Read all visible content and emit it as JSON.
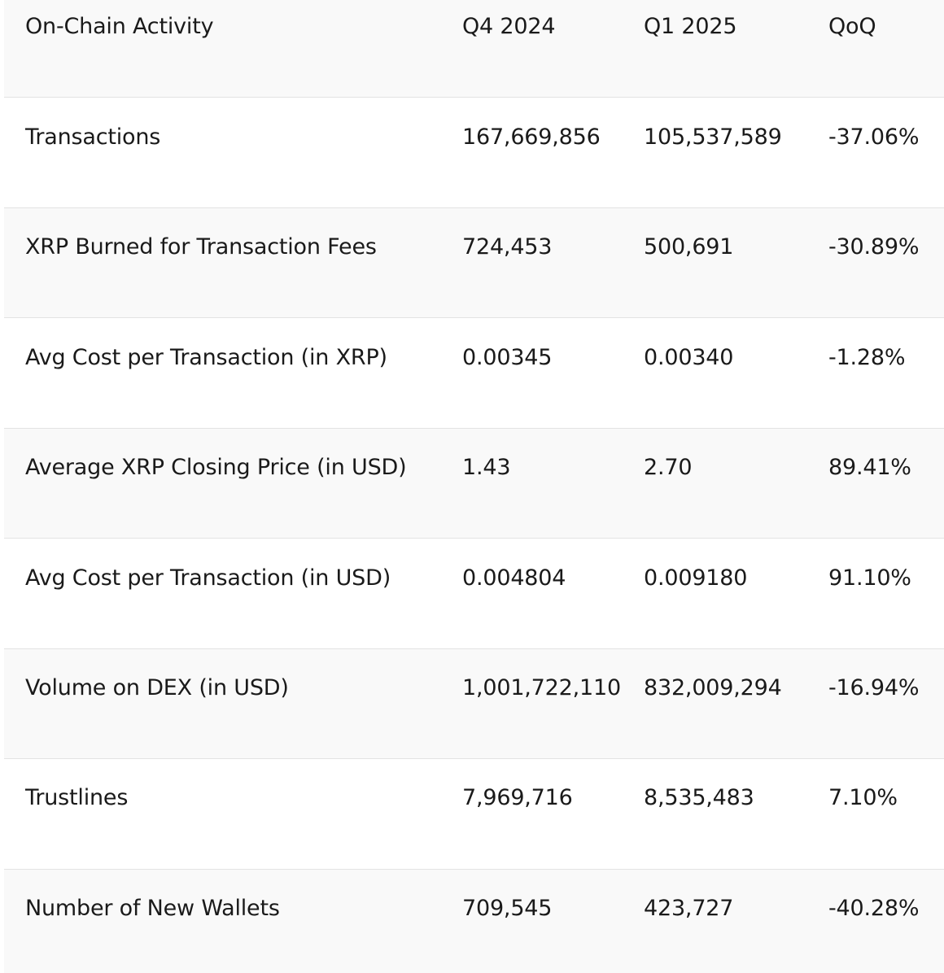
{
  "table": {
    "headers": [
      "On-Chain Activity",
      "Q4 2024",
      "Q1 2025",
      "QoQ"
    ],
    "rows": [
      [
        "Transactions",
        "167,669,856",
        "105,537,589",
        "-37.06%"
      ],
      [
        "XRP Burned for Transaction Fees",
        "724,453",
        "500,691",
        "-30.89%"
      ],
      [
        "Avg Cost per Transaction (in XRP)",
        "0.00345",
        "0.00340",
        "-1.28%"
      ],
      [
        "Average XRP Closing Price (in USD)",
        "1.43",
        "2.70",
        "89.41%"
      ],
      [
        "Avg Cost per Transaction (in USD)",
        "0.004804",
        "0.009180",
        "91.10%"
      ],
      [
        "Volume on DEX (in USD)",
        "1,001,722,110",
        "832,009,294",
        "-16.94%"
      ],
      [
        "Trustlines",
        "7,969,716",
        "8,535,483",
        "7.10%"
      ],
      [
        "Number of New Wallets",
        "709,545",
        "423,727",
        "-40.28%"
      ]
    ]
  }
}
